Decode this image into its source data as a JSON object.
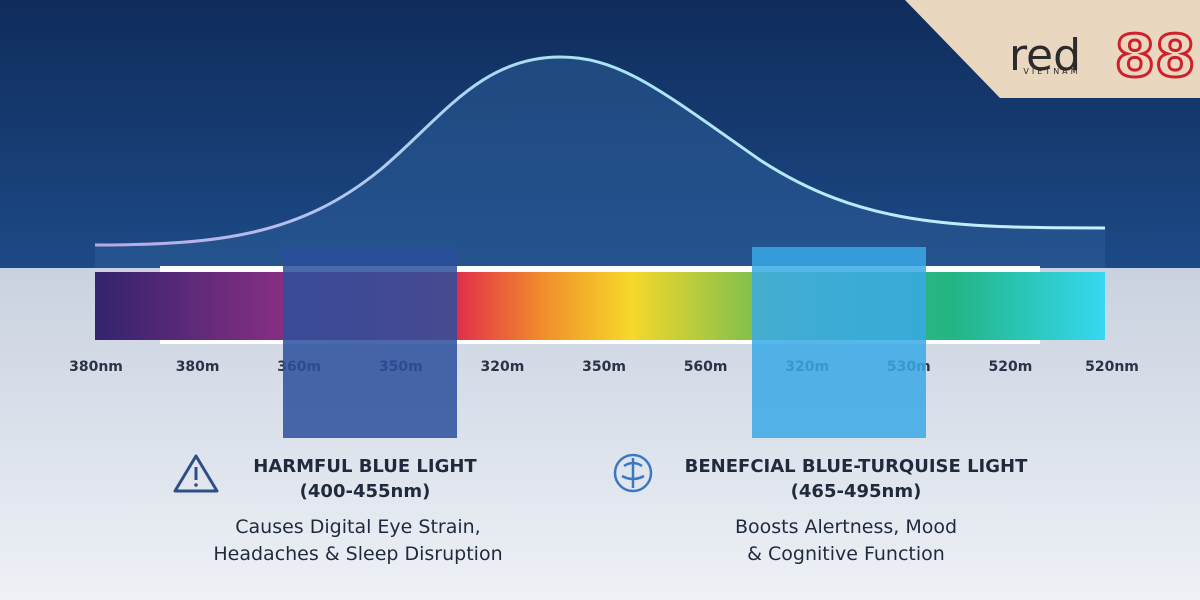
{
  "logo": {
    "word": "red",
    "number": "88",
    "country": "VIETNAM"
  },
  "spectrum_labels": [
    "380nm",
    "380m",
    "360m",
    "350m",
    "320m",
    "350m",
    "560m",
    "320m",
    "530m",
    "520m",
    "520nm"
  ],
  "panels": [
    {
      "title": "HARMFUL BLUE LIGHT",
      "range": "(400-455nm)",
      "description": [
        "Causes Digital Eye Strain,",
        "Headaches & Sleep Disruption"
      ]
    },
    {
      "title": "BENEFCIAL BLUE-TURQUISE LIGHT",
      "range": "(465-495nm)",
      "description": [
        "Boosts Alertness, Mood",
        "& Cognitive Function"
      ]
    }
  ]
}
